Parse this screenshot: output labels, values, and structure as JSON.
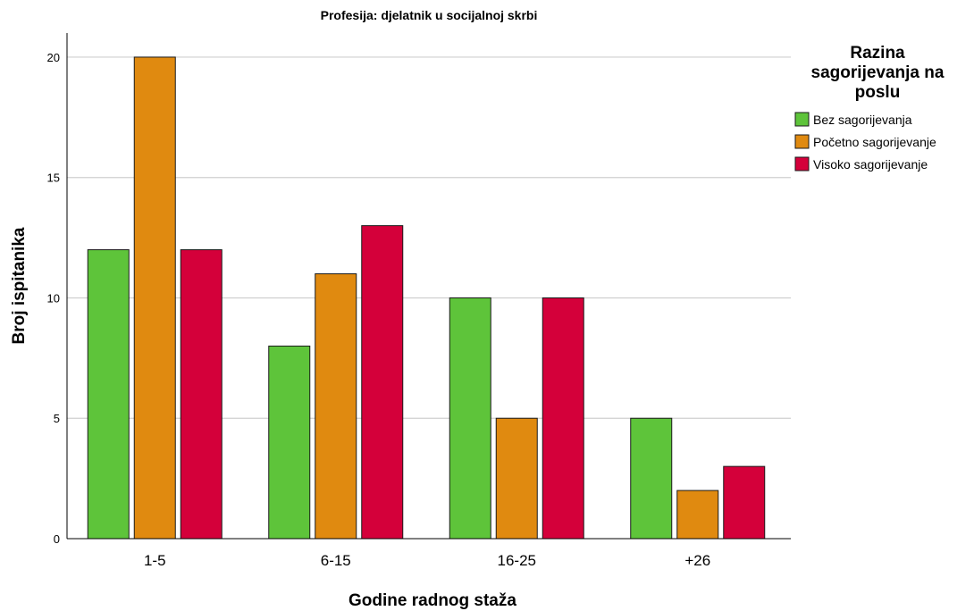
{
  "chart_data": {
    "type": "bar",
    "title": "Profesija: djelatnik u socijalnoj skrbi",
    "xlabel": "Godine radnog staža",
    "ylabel": "Broj ispitanika",
    "categories": [
      "1-5",
      "6-15",
      "16-25",
      "+26"
    ],
    "ylim": [
      0,
      21
    ],
    "yticks": [
      "0",
      "5",
      "10",
      "15",
      "20"
    ],
    "grid": true,
    "legend": {
      "title_lines": [
        "Razina",
        "sagorijevanja na",
        "poslu"
      ],
      "placement": "right"
    },
    "series": [
      {
        "name": "Bez sagorijevanja",
        "color": "#5ec43a",
        "values": [
          12,
          8,
          10,
          5
        ]
      },
      {
        "name": "Početno sagorijevanje",
        "color": "#e08a10",
        "values": [
          20,
          11,
          5,
          2
        ]
      },
      {
        "name": "Visoko sagorijevanje",
        "color": "#d4003a",
        "values": [
          12,
          13,
          10,
          3
        ]
      }
    ]
  }
}
